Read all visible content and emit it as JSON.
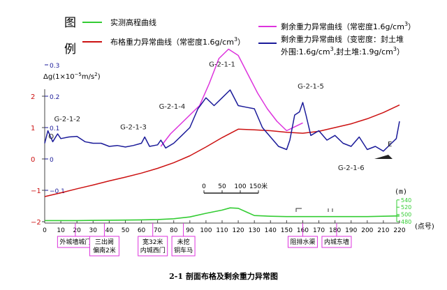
{
  "chart_data": {
    "type": "line",
    "title": "2-1 剖面布格及剩余重力异常图",
    "legend": {
      "placement": "top",
      "heading_top": "图",
      "heading_bottom": "例",
      "entries": [
        {
          "key": "elevation",
          "label": "实测高程曲线",
          "color": "#33cc33"
        },
        {
          "key": "bouguer",
          "label_main": "布格重力异常曲线（常密度1.6g/cm",
          "label_sup": "3",
          "label_end": "）",
          "color": "#cc1111"
        },
        {
          "key": "residual_const",
          "label_main": "剩余重力异常曲线（常密度1.6g/cm",
          "label_sup": "3",
          "label_end": "）",
          "color": "#dd33dd"
        },
        {
          "key": "residual_var",
          "label_line1": "剩余重力异常曲线（变密度：封土堆",
          "label_line2_a": "外围:1.6g/cm",
          "label_line2_sup1": "3",
          "label_line2_b": ",封土堆:1.9g/cm",
          "label_line2_sup2": "3",
          "label_line2_c": "）",
          "color": "#1a1a99"
        }
      ]
    },
    "y_axis_label": {
      "a": "Δg(1×10",
      "sup1": "−5",
      "b": "m/s",
      "sup2": "2",
      "c": ")"
    },
    "x_axis": {
      "range": [
        0,
        220
      ],
      "ticks": [
        0,
        10,
        20,
        30,
        40,
        50,
        60,
        70,
        80,
        90,
        100,
        110,
        120,
        130,
        140,
        150,
        160,
        170,
        180,
        190,
        200,
        210,
        220
      ],
      "unit": "(点号)"
    },
    "y_axis_red": {
      "ticks": [
        2,
        1,
        0,
        -1,
        -2
      ],
      "labels": [
        "2",
        "1",
        "0",
        "−1",
        "−2"
      ],
      "color": "#cc1111"
    },
    "y_axis_blue": {
      "ticks": [
        0.3,
        0.2,
        0.1,
        0,
        -0.1
      ],
      "labels": [
        "0.3",
        "0.2",
        "0.1",
        "0",
        "−0.1"
      ],
      "color": "#1a1a99"
    },
    "elevation_axis": {
      "label": "(m)",
      "ticks": [
        540,
        520,
        500,
        480
      ],
      "color": "#33cc33"
    },
    "scale_bar": {
      "ticks": [
        0,
        50,
        100,
        150
      ],
      "labels": [
        "0",
        "50",
        "100",
        "150米"
      ]
    },
    "series": [
      {
        "key": "bouguer",
        "axis": "red",
        "x": [
          0,
          10,
          20,
          30,
          40,
          50,
          60,
          70,
          80,
          90,
          100,
          110,
          120,
          130,
          140,
          150,
          160,
          170,
          180,
          190,
          200,
          210,
          220
        ],
        "values": [
          -1.2,
          -1.08,
          -0.95,
          -0.83,
          -0.7,
          -0.58,
          -0.45,
          -0.3,
          -0.12,
          0.1,
          0.38,
          0.68,
          0.95,
          0.93,
          0.9,
          0.85,
          0.82,
          0.88,
          1.0,
          1.12,
          1.28,
          1.48,
          1.72
        ]
      },
      {
        "key": "residual_const",
        "axis": "red",
        "x": [
          72,
          78,
          84,
          90,
          96,
          102,
          108,
          114,
          120,
          126,
          132,
          138,
          144,
          150,
          156,
          160
        ],
        "values": [
          0.4,
          0.8,
          1.1,
          1.4,
          1.7,
          2.4,
          3.2,
          3.5,
          3.3,
          2.7,
          2.1,
          1.6,
          1.2,
          0.9,
          1.05,
          1.15
        ]
      },
      {
        "key": "residual_var",
        "axis": "blue",
        "x": [
          0,
          2,
          5,
          8,
          10,
          15,
          20,
          25,
          30,
          35,
          40,
          45,
          50,
          55,
          60,
          62,
          65,
          70,
          72,
          75,
          80,
          85,
          90,
          95,
          100,
          105,
          110,
          115,
          120,
          125,
          130,
          135,
          140,
          145,
          150,
          152,
          155,
          158,
          160,
          162,
          165,
          170,
          175,
          180,
          185,
          190,
          195,
          200,
          205,
          210,
          215,
          218,
          220
        ],
        "values": [
          0.05,
          0.09,
          0.055,
          0.08,
          0.065,
          0.07,
          0.072,
          0.055,
          0.05,
          0.05,
          0.04,
          0.043,
          0.038,
          0.043,
          0.05,
          0.07,
          0.04,
          0.045,
          0.06,
          0.035,
          0.05,
          0.075,
          0.1,
          0.16,
          0.195,
          0.17,
          0.195,
          0.22,
          0.17,
          0.165,
          0.16,
          0.1,
          0.07,
          0.04,
          0.03,
          0.06,
          0.14,
          0.15,
          0.18,
          0.14,
          0.075,
          0.09,
          0.06,
          0.075,
          0.05,
          0.04,
          0.07,
          0.03,
          0.04,
          0.025,
          0.05,
          0.065,
          0.12
        ]
      },
      {
        "key": "elevation",
        "axis": "elevation",
        "x": [
          0,
          20,
          40,
          60,
          70,
          80,
          90,
          100,
          110,
          115,
          120,
          125,
          130,
          140,
          150,
          155,
          160,
          170,
          180,
          190,
          200,
          210,
          220
        ],
        "values": [
          483,
          483,
          484,
          485,
          486,
          488,
          493,
          503,
          512,
          518,
          517,
          507,
          497,
          495,
          494,
          494,
          494,
          494,
          494,
          494,
          494,
          495,
          496
        ]
      }
    ],
    "annotations": [
      {
        "text": "G-2-1-2",
        "x": 14,
        "y": 0.12,
        "axis": "blue"
      },
      {
        "text": "G-2-1-3",
        "x": 55,
        "y": 0.095,
        "axis": "blue"
      },
      {
        "text": "G-2-1-4",
        "x": 79,
        "y": 0.16,
        "axis": "blue"
      },
      {
        "text": "G-2-1-1",
        "x": 110,
        "y": 0.295,
        "axis": "blue"
      },
      {
        "text": "G-2-1-5",
        "x": 165,
        "y": 0.225,
        "axis": "blue"
      },
      {
        "text": "G-2-1-6",
        "x": 190,
        "y": -0.035,
        "axis": "blue"
      },
      {
        "text": "O",
        "x": 4,
        "y": 0.065,
        "axis": "blue"
      },
      {
        "text": "E",
        "x": 214,
        "y": 0.04,
        "axis": "blue"
      }
    ],
    "location_labels": [
      {
        "lines": [
          "外城墙城门"
        ],
        "x": 19
      },
      {
        "lines": [
          "三出阙",
          "偏南2米"
        ],
        "x": 37
      },
      {
        "lines": [
          "宽32米",
          "内城西门"
        ],
        "x": 67
      },
      {
        "lines": [
          "未挖",
          "铜车马"
        ],
        "x": 86
      },
      {
        "lines": [
          "阻排水渠"
        ],
        "x": 160
      },
      {
        "lines": [
          "内城东墙"
        ],
        "x": 181
      }
    ]
  }
}
